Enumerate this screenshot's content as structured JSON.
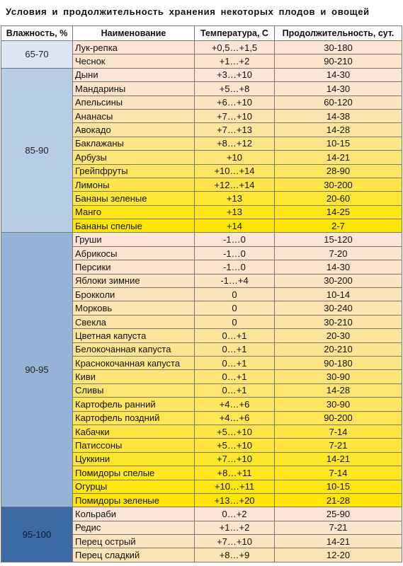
{
  "title": "Условия и продолжительность хранения некоторых плодов и овощей",
  "table": {
    "headers": [
      "Влажность, %",
      "Наименование",
      "Температура, С",
      "Продолжительность, сут."
    ],
    "groups": [
      {
        "humidity": "65-70",
        "rows": [
          [
            "Лук-репка",
            "+0,5…+1,5",
            "30-180"
          ],
          [
            "Чеснок",
            "+1…+2",
            "90-210"
          ]
        ]
      },
      {
        "humidity": "85-90",
        "rows": [
          [
            "Дыни",
            "+3…+10",
            "14-30"
          ],
          [
            "Мандарины",
            "+5…+8",
            "14-30"
          ],
          [
            "Апельсины",
            "+6…+10",
            "60-120"
          ],
          [
            "Ананасы",
            "+7…+10",
            "14-38"
          ],
          [
            "Авокадо",
            "+7…+13",
            "14-28"
          ],
          [
            "Баклажаны",
            "+8…+12",
            "10-15"
          ],
          [
            "Арбузы",
            "+10",
            "14-21"
          ],
          [
            "Грейпфруты",
            "+10…+14",
            "28-90"
          ],
          [
            "Лимоны",
            "+12…+14",
            "30-200"
          ],
          [
            "Бананы зеленые",
            "+13",
            "20-60"
          ],
          [
            "Манго",
            "+13",
            "14-25"
          ],
          [
            "Бананы спелые",
            "+14",
            "2-7"
          ]
        ]
      },
      {
        "humidity": "90-95",
        "rows": [
          [
            "Груши",
            "-1…0",
            "15-120"
          ],
          [
            "Абрикосы",
            "-1…0",
            "7-20"
          ],
          [
            "Персики",
            "-1…0",
            "14-30"
          ],
          [
            "Яблоки зимние",
            "-1…+4",
            "30-200"
          ],
          [
            "Брокколи",
            "0",
            "10-14"
          ],
          [
            "Морковь",
            "0",
            "30-240"
          ],
          [
            "Свекла",
            "0",
            "30-210"
          ],
          [
            "Цветная капуста",
            "0…+1",
            "20-30"
          ],
          [
            "Белокочанная капуста",
            "0…+1",
            "20-210"
          ],
          [
            "Краснокочанная капуста",
            "0…+1",
            "90-180"
          ],
          [
            "Киви",
            "0…+1",
            "30-90"
          ],
          [
            "Сливы",
            "0…+1",
            "14-28"
          ],
          [
            "Картофель ранний",
            "+4…+6",
            "30-90"
          ],
          [
            "Картофель поздний",
            "+4…+6",
            "90-200"
          ],
          [
            "Кабачки",
            "+5…+10",
            "7-14"
          ],
          [
            "Патиссоны",
            "+5…+10",
            "7-21"
          ],
          [
            "Цуккини",
            "+7…+10",
            "14-21"
          ],
          [
            "Помидоры спелые",
            "+8…+11",
            "7-14"
          ],
          [
            "Огурцы",
            "+10…+11",
            "10-15"
          ],
          [
            "Помидоры зеленые",
            "+13…+20",
            "21-28"
          ]
        ]
      },
      {
        "humidity": "95-100",
        "rows": [
          [
            "Кольраби",
            "0…+2",
            "25-90"
          ],
          [
            "Редис",
            "+1…+2",
            "7-21"
          ],
          [
            "Перец острый",
            "+7…+10",
            "14-21"
          ],
          [
            "Перец сладкий",
            "+8…+9",
            "12-20"
          ]
        ]
      }
    ]
  }
}
